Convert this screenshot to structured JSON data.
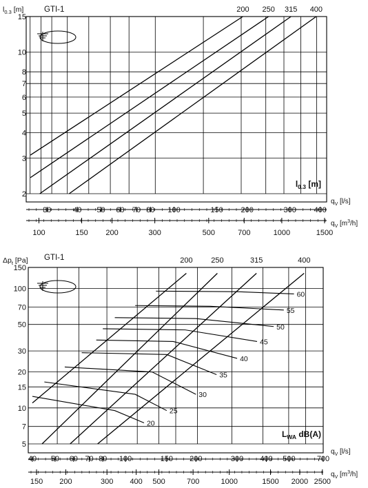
{
  "chart_data": [
    {
      "type": "line",
      "title": "GTI-1",
      "ylabel": "l",
      "ylabel_sub": "0.3",
      "ylabel_unit": "[m]",
      "y_scale": "log",
      "ylim": [
        2,
        15
      ],
      "yticks": [
        2,
        3,
        4,
        5,
        6,
        7,
        8,
        10,
        15
      ],
      "x_scale": "log",
      "xlim": [
        25.6,
        425
      ],
      "x_axis1": {
        "label": "q",
        "sub": "V",
        "unit": "[l/s]",
        "ticks": [
          30,
          40,
          50,
          60,
          70,
          80,
          100,
          150,
          200,
          300,
          400
        ]
      },
      "x_axis2": {
        "label": "q",
        "sub": "V",
        "unit_pre": "[m",
        "unit_sup": "3",
        "unit_post": "/h]",
        "ticks": [
          100,
          150,
          200,
          300,
          500,
          700,
          1000,
          1500
        ]
      },
      "series": [
        {
          "name": "200",
          "points": [
            [
              25.6,
              3.1
            ],
            [
              192,
              15
            ]
          ]
        },
        {
          "name": "250",
          "points": [
            [
              25.6,
              2.4
            ],
            [
              245,
              15
            ]
          ]
        },
        {
          "name": "315",
          "points": [
            [
              28,
              2.0
            ],
            [
              303,
              15
            ]
          ]
        },
        {
          "name": "400",
          "points": [
            [
              37,
              2.0
            ],
            [
              385,
              15
            ]
          ]
        }
      ],
      "legend_label": "l",
      "legend_sub": "0.3",
      "legend_unit": "[m]",
      "grid": true
    },
    {
      "type": "line",
      "title": "GTI-1",
      "ylabel": "Δp",
      "ylabel_sub": "t",
      "ylabel_unit": "[Pa]",
      "y_scale": "log",
      "ylim": [
        5,
        150
      ],
      "yticks": [
        5,
        7,
        10,
        15,
        20,
        30,
        50,
        70,
        100,
        150
      ],
      "x_scale": "log",
      "xlim": [
        40,
        700
      ],
      "x_axis1": {
        "label": "q",
        "sub": "V",
        "unit": "[l/s]",
        "ticks": [
          40,
          50,
          60,
          70,
          80,
          100,
          150,
          200,
          300,
          400,
          500,
          700
        ]
      },
      "x_axis2": {
        "label": "q",
        "sub": "V",
        "unit_pre": "[m",
        "unit_sup": "3",
        "unit_post": "/h]",
        "ticks": [
          150,
          200,
          300,
          400,
          500,
          700,
          1000,
          1500,
          2000,
          2500
        ]
      },
      "series": [
        {
          "name": "200",
          "points": [
            [
              40,
              11
            ],
            [
              182,
              134
            ]
          ]
        },
        {
          "name": "250",
          "points": [
            [
              44,
              5
            ],
            [
              247,
              134
            ]
          ]
        },
        {
          "name": "315",
          "points": [
            [
              58,
              5
            ],
            [
              363,
              134
            ]
          ]
        },
        {
          "name": "400",
          "points": [
            [
              76,
              5
            ],
            [
              580,
              134
            ]
          ]
        }
      ],
      "sound_lines": [
        {
          "label": "20",
          "points": [
            [
              40,
              12.5
            ],
            [
              90,
              9.5
            ],
            [
              120,
              7.5
            ]
          ]
        },
        {
          "label": "25",
          "points": [
            [
              45,
              16.5
            ],
            [
              110,
              13
            ],
            [
              150,
              9.5
            ]
          ]
        },
        {
          "label": "30",
          "points": [
            [
              55,
              22
            ],
            [
              130,
              20
            ],
            [
              200,
              13
            ]
          ]
        },
        {
          "label": "35",
          "points": [
            [
              65,
              29
            ],
            [
              150,
              28
            ],
            [
              245,
              19
            ]
          ]
        },
        {
          "label": "40",
          "points": [
            [
              75,
              37
            ],
            [
              160,
              36
            ],
            [
              300,
              26
            ]
          ]
        },
        {
          "label": "45",
          "points": [
            [
              80,
              46
            ],
            [
              180,
              45
            ],
            [
              365,
              36
            ]
          ]
        },
        {
          "label": "50",
          "points": [
            [
              90,
              57
            ],
            [
              200,
              56
            ],
            [
              430,
              48
            ]
          ]
        },
        {
          "label": "55",
          "points": [
            [
              110,
              72
            ],
            [
              230,
              71
            ],
            [
              475,
              66
            ]
          ]
        },
        {
          "label": "60",
          "points": [
            [
              135,
              95
            ],
            [
              300,
              94
            ],
            [
              525,
              90
            ]
          ]
        }
      ],
      "legend_label": "L",
      "legend_sub": "WA",
      "legend_unit": "dB(A)",
      "grid": true
    }
  ]
}
